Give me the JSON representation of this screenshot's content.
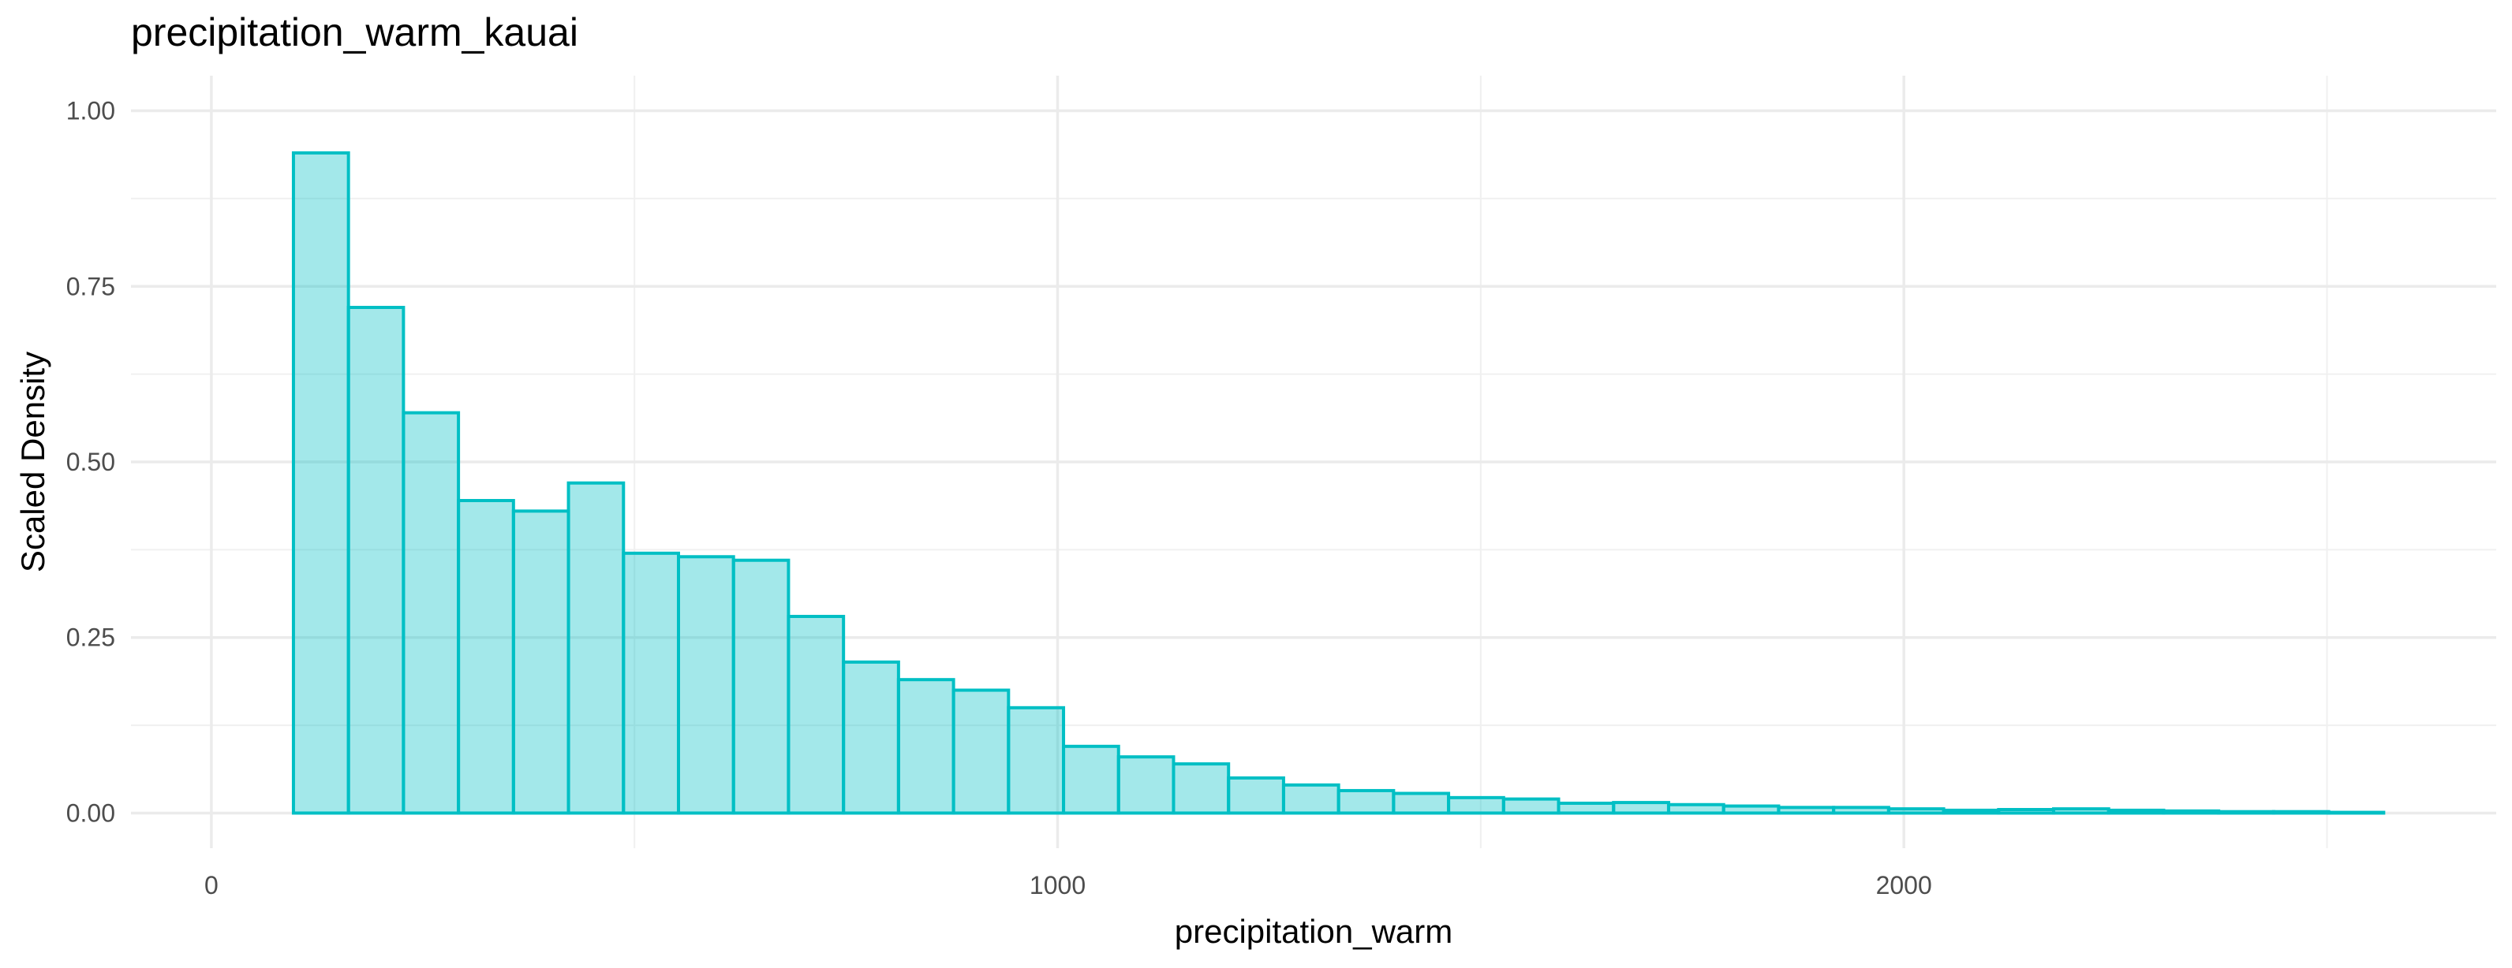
{
  "chart_data": {
    "type": "bar",
    "title": "precipitation_warm_kauai",
    "xlabel": "precipitation_warm",
    "ylabel": "Scaled Density",
    "xlim": [
      -95,
      2700
    ],
    "ylim": [
      -0.05,
      1.05
    ],
    "x_ticks": [
      0,
      1000,
      2000
    ],
    "x_tick_labels": [
      "0",
      "1000",
      "2000"
    ],
    "y_ticks": [
      0.0,
      0.25,
      0.5,
      0.75,
      1.0
    ],
    "y_tick_labels": [
      "0.00",
      "0.25",
      "0.50",
      "0.75",
      "1.00"
    ],
    "grid": true,
    "fill_color": "#00BFC4",
    "fill_opacity": 0.36,
    "edge_color": "#00BFC4",
    "bin_edges": [
      97,
      162,
      227,
      292,
      357,
      422,
      487,
      552,
      617,
      682,
      747,
      812,
      877,
      942,
      1007,
      1072,
      1137,
      1202,
      1267,
      1332,
      1397,
      1462,
      1527,
      1592,
      1657,
      1722,
      1787,
      1852,
      1917,
      1982,
      2047,
      2112,
      2177,
      2242,
      2307,
      2372,
      2437,
      2502,
      2567
    ],
    "values": [
      0.94,
      0.72,
      0.57,
      0.445,
      0.43,
      0.47,
      0.37,
      0.365,
      0.36,
      0.28,
      0.215,
      0.19,
      0.175,
      0.15,
      0.095,
      0.08,
      0.07,
      0.05,
      0.04,
      0.032,
      0.028,
      0.022,
      0.02,
      0.014,
      0.015,
      0.012,
      0.01,
      0.008,
      0.008,
      0.006,
      0.004,
      0.005,
      0.006,
      0.004,
      0.003,
      0.002,
      0.002,
      0.001
    ]
  }
}
